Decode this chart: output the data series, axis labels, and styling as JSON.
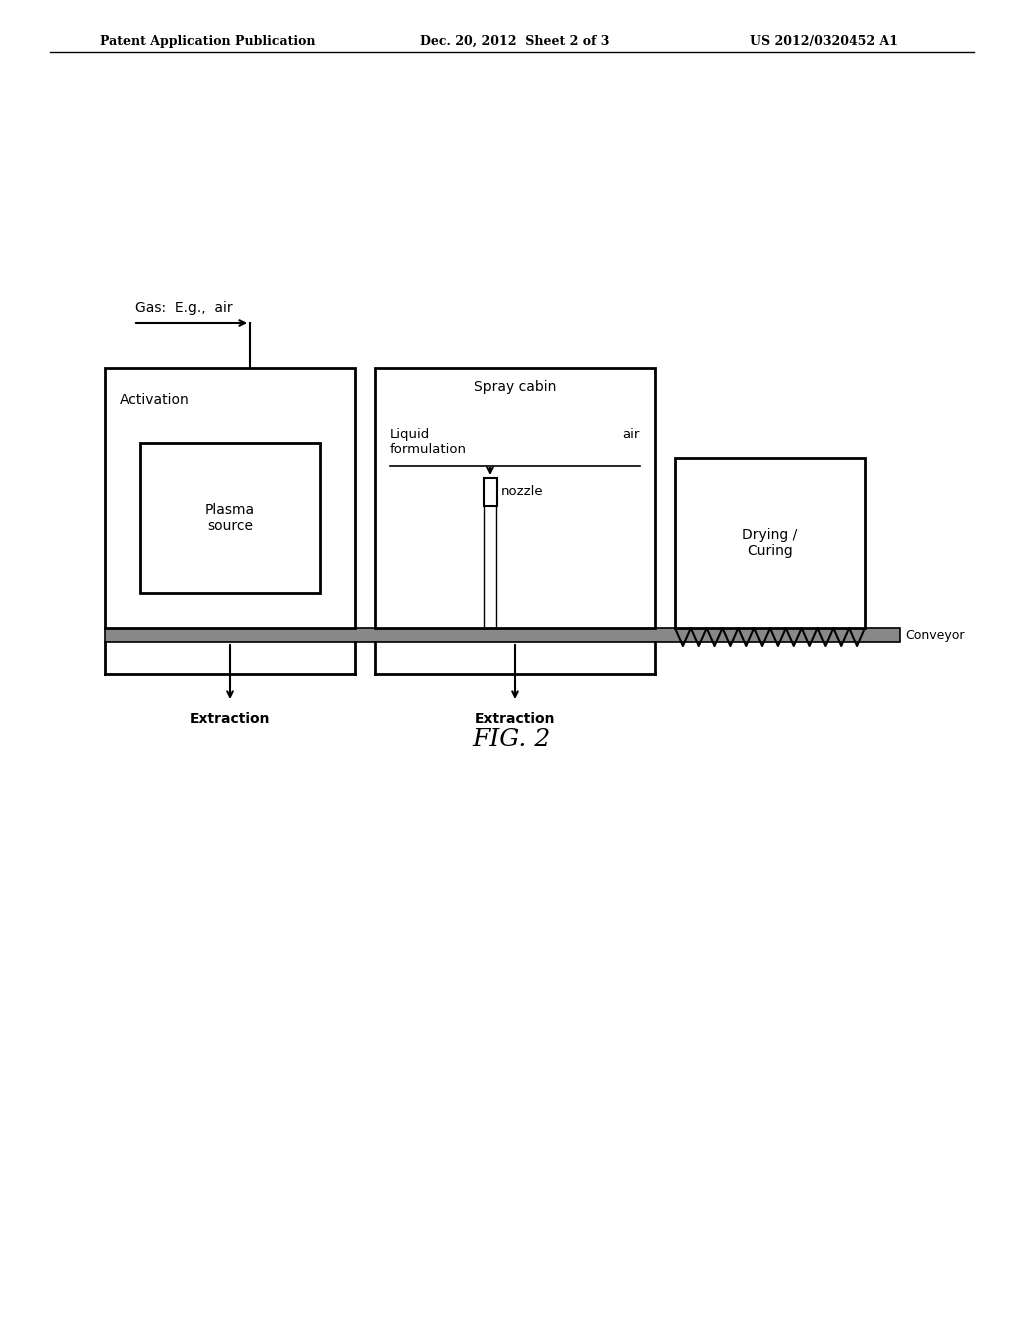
{
  "bg_color": "#ffffff",
  "header_left": "Patent Application Publication",
  "header_mid": "Dec. 20, 2012  Sheet 2 of 3",
  "header_right": "US 2012/0320452 A1",
  "fig_label": "FIG. 2",
  "gas_label": "Gas:  E.g.,  air",
  "activation_label": "Activation",
  "plasma_label": "Plasma\nsource",
  "spray_cabin_label": "Spray cabin",
  "liquid_label": "Liquid",
  "air_label": "air",
  "formulation_label": "formulation",
  "nozzle_label": "nozzle",
  "drying_label": "Drying /\nCuring",
  "conveyor_label": "Conveyor",
  "extraction1_label": "Extraction",
  "extraction2_label": "Extraction"
}
